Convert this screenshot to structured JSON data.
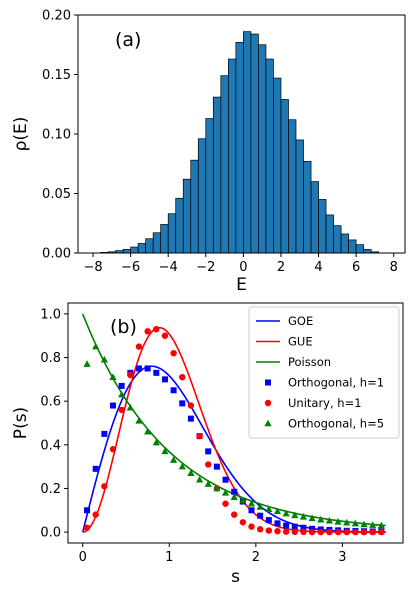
{
  "chart_data": [
    {
      "type": "bar",
      "panel_label": "(a)",
      "xlabel": "E",
      "ylabel": "ρ(E)",
      "xlim": [
        -8.8,
        8.6
      ],
      "ylim": [
        0.0,
        0.2
      ],
      "xticks": [
        -8,
        -6,
        -4,
        -2,
        0,
        2,
        4,
        6,
        8
      ],
      "xtick_labels": [
        "−8",
        "−6",
        "−4",
        "−2",
        "0",
        "2",
        "4",
        "6",
        "8"
      ],
      "yticks": [
        0.0,
        0.05,
        0.1,
        0.15,
        0.2
      ],
      "ytick_labels": [
        "0.00",
        "0.05",
        "0.10",
        "0.15",
        "0.20"
      ],
      "bar_color": "#1f77b4",
      "bin_edges": [
        -7.6,
        -7.2,
        -6.8,
        -6.4,
        -6.0,
        -5.6,
        -5.2,
        -4.8,
        -4.4,
        -4.0,
        -3.6,
        -3.2,
        -2.8,
        -2.4,
        -2.0,
        -1.6,
        -1.2,
        -0.8,
        -0.4,
        0.0,
        0.4,
        0.8,
        1.2,
        1.6,
        2.0,
        2.4,
        2.8,
        3.2,
        3.6,
        4.0,
        4.4,
        4.8,
        5.2,
        5.6,
        6.0,
        6.4,
        6.8,
        7.2
      ],
      "values": [
        0.0005,
        0.001,
        0.002,
        0.003,
        0.005,
        0.008,
        0.012,
        0.017,
        0.024,
        0.033,
        0.046,
        0.062,
        0.078,
        0.096,
        0.113,
        0.131,
        0.149,
        0.163,
        0.177,
        0.186,
        0.184,
        0.175,
        0.163,
        0.147,
        0.129,
        0.112,
        0.095,
        0.077,
        0.06,
        0.045,
        0.032,
        0.023,
        0.016,
        0.011,
        0.007,
        0.003,
        0.001
      ]
    },
    {
      "type": "line",
      "panel_label": "(b)",
      "xlabel": "s",
      "ylabel": "P(s)",
      "xlim": [
        -0.17,
        3.7
      ],
      "ylim": [
        -0.05,
        1.05
      ],
      "xticks": [
        0,
        1,
        2,
        3
      ],
      "xtick_labels": [
        "0",
        "1",
        "2",
        "3"
      ],
      "yticks": [
        0.0,
        0.2,
        0.4,
        0.6,
        0.8,
        1.0
      ],
      "ytick_labels": [
        "0.0",
        "0.2",
        "0.4",
        "0.6",
        "0.8",
        "1.0"
      ],
      "legend_position": "top-right",
      "curves": [
        {
          "name": "GOE",
          "color": "#0000ff",
          "formula": "GOE",
          "s_range": [
            0,
            3.5
          ]
        },
        {
          "name": "GUE",
          "color": "#ff0000",
          "formula": "GUE",
          "s_range": [
            0,
            3.5
          ]
        },
        {
          "name": "Poisson",
          "color": "#008000",
          "formula": "Poisson",
          "s_range": [
            0,
            3.5
          ]
        }
      ],
      "scatter": [
        {
          "name": "Orthogonal, h=1",
          "marker": "square",
          "color": "#0000ff",
          "x": [
            0.05,
            0.15,
            0.25,
            0.35,
            0.45,
            0.55,
            0.65,
            0.75,
            0.85,
            0.95,
            1.05,
            1.15,
            1.25,
            1.35,
            1.45,
            1.55,
            1.65,
            1.75,
            1.85,
            1.95,
            2.05,
            2.15,
            2.25,
            2.35,
            2.45,
            2.55,
            2.65,
            2.75,
            2.85,
            2.95,
            3.05,
            3.15,
            3.25,
            3.35,
            3.45
          ],
          "y": [
            0.1,
            0.29,
            0.45,
            0.58,
            0.67,
            0.73,
            0.75,
            0.75,
            0.73,
            0.7,
            0.65,
            0.59,
            0.52,
            0.44,
            0.37,
            0.3,
            0.24,
            0.185,
            0.14,
            0.1,
            0.075,
            0.055,
            0.04,
            0.03,
            0.025,
            0.02,
            0.015,
            0.012,
            0.01,
            0.008,
            0.006,
            0.005,
            0.004,
            0.003,
            0.003
          ]
        },
        {
          "name": "Unitary, h=1",
          "marker": "circle",
          "color": "#ff0000",
          "x": [
            0.05,
            0.15,
            0.25,
            0.35,
            0.45,
            0.55,
            0.65,
            0.75,
            0.85,
            0.95,
            1.05,
            1.15,
            1.25,
            1.35,
            1.45,
            1.55,
            1.65,
            1.75,
            1.85,
            1.95,
            2.05,
            2.15,
            2.25,
            2.35,
            2.45,
            2.55,
            2.65,
            2.75,
            2.85,
            2.95,
            3.05,
            3.15,
            3.25,
            3.35,
            3.45
          ],
          "y": [
            0.02,
            0.08,
            0.21,
            0.38,
            0.56,
            0.72,
            0.85,
            0.92,
            0.93,
            0.9,
            0.82,
            0.71,
            0.58,
            0.44,
            0.31,
            0.2,
            0.13,
            0.08,
            0.045,
            0.025,
            0.013,
            0.007,
            0.004,
            0.002,
            0.001,
            0.001,
            0.0,
            0.0,
            0.0,
            0.0,
            0.0,
            0.0,
            0.0,
            0.0,
            0.0
          ]
        },
        {
          "name": "Orthogonal, h=5",
          "marker": "triangle",
          "color": "#008000",
          "x": [
            0.05,
            0.15,
            0.25,
            0.35,
            0.45,
            0.55,
            0.65,
            0.75,
            0.85,
            0.95,
            1.05,
            1.15,
            1.25,
            1.35,
            1.45,
            1.55,
            1.65,
            1.75,
            1.85,
            1.95,
            2.05,
            2.15,
            2.25,
            2.35,
            2.45,
            2.55,
            2.65,
            2.75,
            2.85,
            2.95,
            3.05,
            3.15,
            3.25,
            3.35,
            3.45
          ],
          "y": [
            0.77,
            0.85,
            0.79,
            0.71,
            0.63,
            0.57,
            0.51,
            0.46,
            0.41,
            0.37,
            0.33,
            0.3,
            0.27,
            0.24,
            0.22,
            0.2,
            0.18,
            0.16,
            0.145,
            0.13,
            0.115,
            0.105,
            0.095,
            0.085,
            0.077,
            0.07,
            0.063,
            0.057,
            0.052,
            0.047,
            0.043,
            0.039,
            0.035,
            0.032,
            0.03
          ]
        }
      ]
    }
  ]
}
